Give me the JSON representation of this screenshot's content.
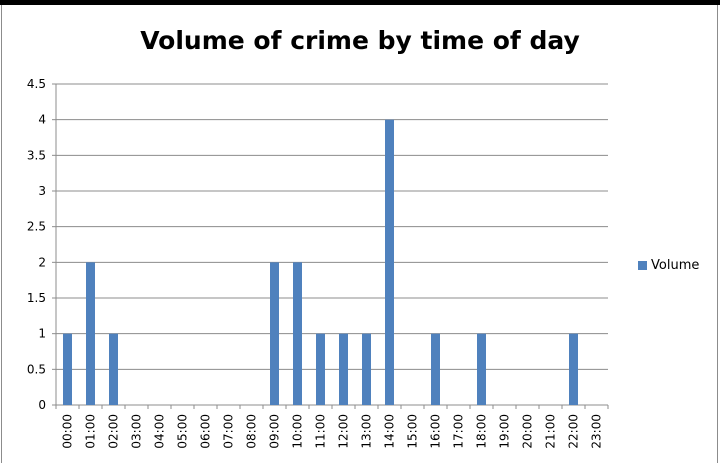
{
  "chart_data": {
    "type": "bar",
    "title": "Volume of crime by time of day",
    "xlabel": "",
    "ylabel": "",
    "categories": [
      "00:00",
      "01:00",
      "02:00",
      "03:00",
      "04:00",
      "05:00",
      "06:00",
      "07:00",
      "08:00",
      "09:00",
      "10:00",
      "11:00",
      "12:00",
      "13:00",
      "14:00",
      "15:00",
      "16:00",
      "17:00",
      "18:00",
      "19:00",
      "20:00",
      "21:00",
      "22:00",
      "23:00"
    ],
    "series": [
      {
        "name": "Volume",
        "color": "#4f81bd",
        "values": [
          1,
          2,
          1,
          0,
          0,
          0,
          0,
          0,
          0,
          2,
          2,
          1,
          1,
          1,
          4,
          0,
          1,
          0,
          1,
          0,
          0,
          0,
          1,
          0
        ]
      }
    ],
    "ylim": [
      0,
      4.5
    ],
    "yticks": [
      "0",
      "0.5",
      "1",
      "1.5",
      "2",
      "2.5",
      "3",
      "3.5",
      "4",
      "4.5"
    ],
    "grid": true,
    "legend_position": "right"
  }
}
